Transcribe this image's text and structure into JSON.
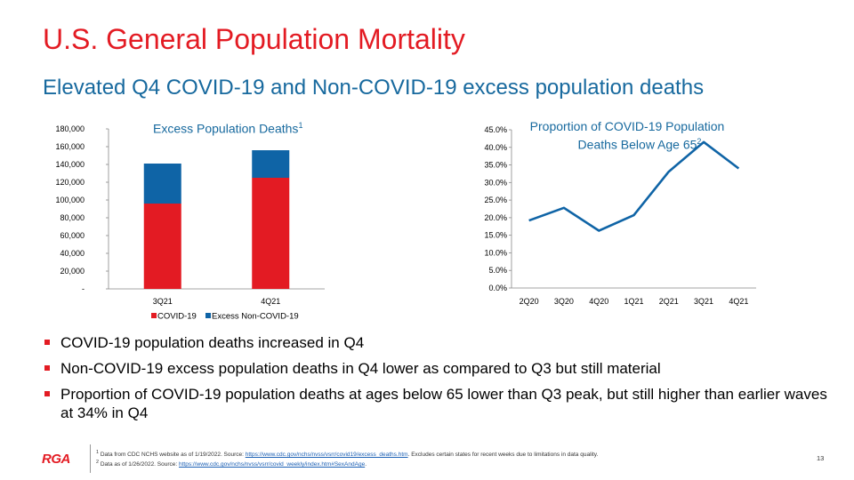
{
  "slide": {
    "title": "U.S. General Population Mortality",
    "subtitle": "Elevated Q4 COVID-19 and Non-COVID-19 excess population deaths",
    "page_number": "13",
    "logo_text": "RGA"
  },
  "bullets": [
    "COVID-19 population deaths increased in Q4",
    "Non-COVID-19 excess population deaths in Q4 lower as compared to Q3 but still material",
    "Proportion of COVID-19 population deaths at ages below 65 lower than Q3 peak, but still higher than earlier waves at 34% in Q4"
  ],
  "footnotes": {
    "fn1": {
      "sup": "1",
      "before": "Data from CDC NCHS website as of 1/19/2022.  Source: ",
      "link": "https://www.cdc.gov/nchs/nvss/vsrr/covid19/excess_deaths.htm",
      "after": ".  Excludes certain states for recent weeks due to limitations in data quality."
    },
    "fn2": {
      "sup": "2",
      "before": "Data as of 1/26/2022.  Source: ",
      "link": "https://www.cdc.gov/nchs/nvss/vsrr/covid_weekly/index.htm#SexAndAge",
      "after": "."
    }
  },
  "colors": {
    "accent_red": "#e31b23",
    "accent_blue": "#17699e",
    "series_blue": "#0f64a6"
  },
  "chart_data": [
    {
      "type": "bar",
      "stacked": true,
      "title": "Excess Population Deaths",
      "title_sup": "1",
      "categories": [
        "3Q21",
        "4Q21"
      ],
      "series": [
        {
          "name": "COVID-19",
          "color": "#e31b23",
          "values": [
            96000,
            125000
          ]
        },
        {
          "name": "Excess Non-COVID-19",
          "color": "#0f64a6",
          "values": [
            45000,
            31000
          ]
        }
      ],
      "ylim": [
        0,
        180000
      ],
      "yticks": [
        0,
        20000,
        40000,
        60000,
        80000,
        100000,
        120000,
        140000,
        160000,
        180000
      ],
      "ytick_labels": [
        "-",
        "20,000",
        "40,000",
        "60,000",
        "80,000",
        "100,000",
        "120,000",
        "140,000",
        "160,000",
        "180,000"
      ],
      "legend_position": "bottom",
      "grid": false
    },
    {
      "type": "line",
      "title_line1": "Proportion of COVID-19 Population",
      "title_line2": "Deaths Below Age 65",
      "title_sup": "2",
      "x": [
        "2Q20",
        "3Q20",
        "4Q20",
        "1Q21",
        "2Q21",
        "3Q21",
        "4Q21"
      ],
      "series": [
        {
          "color": "#0f64a6",
          "values": [
            19.2,
            22.8,
            16.3,
            20.7,
            33.1,
            41.5,
            34.0
          ]
        }
      ],
      "ylim": [
        0,
        45
      ],
      "yticks": [
        0,
        5,
        10,
        15,
        20,
        25,
        30,
        35,
        40,
        45
      ],
      "ytick_labels": [
        "0.0%",
        "5.0%",
        "10.0%",
        "15.0%",
        "20.0%",
        "25.0%",
        "30.0%",
        "35.0%",
        "40.0%",
        "45.0%"
      ],
      "grid": false
    }
  ]
}
